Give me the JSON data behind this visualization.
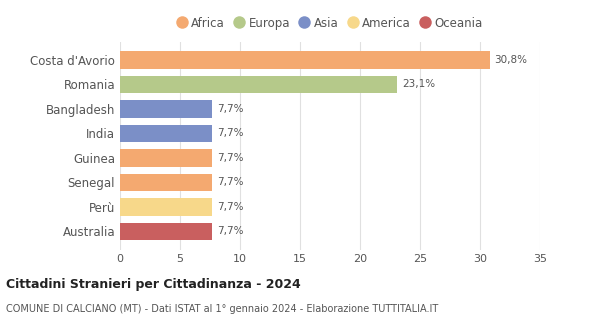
{
  "categories": [
    "Costa d'Avorio",
    "Romania",
    "Bangladesh",
    "India",
    "Guinea",
    "Senegal",
    "Perù",
    "Australia"
  ],
  "values": [
    30.8,
    23.1,
    7.7,
    7.7,
    7.7,
    7.7,
    7.7,
    7.7
  ],
  "labels": [
    "30,8%",
    "23,1%",
    "7,7%",
    "7,7%",
    "7,7%",
    "7,7%",
    "7,7%",
    "7,7%"
  ],
  "bar_colors": [
    "#F4A970",
    "#B5C98A",
    "#7B8FC7",
    "#7B8FC7",
    "#F4A970",
    "#F4A970",
    "#F7D88A",
    "#C95F5F"
  ],
  "legend_items": [
    {
      "label": "Africa",
      "color": "#F4A970"
    },
    {
      "label": "Europa",
      "color": "#B5C98A"
    },
    {
      "label": "Asia",
      "color": "#7B8FC7"
    },
    {
      "label": "America",
      "color": "#F7D88A"
    },
    {
      "label": "Oceania",
      "color": "#C95F5F"
    }
  ],
  "xlim": [
    0,
    35
  ],
  "xticks": [
    0,
    5,
    10,
    15,
    20,
    25,
    30,
    35
  ],
  "title": "Cittadini Stranieri per Cittadinanza - 2024",
  "subtitle": "COMUNE DI CALCIANO (MT) - Dati ISTAT al 1° gennaio 2024 - Elaborazione TUTTITALIA.IT",
  "background_color": "#ffffff",
  "grid_color": "#e0e0e0"
}
